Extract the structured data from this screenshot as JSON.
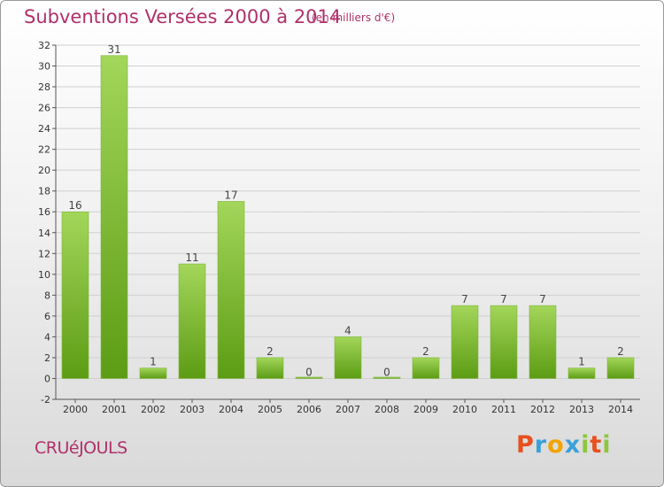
{
  "header": {
    "title": "Subventions Versées 2000 à 2014",
    "subtitle": "(en milliers d'€)"
  },
  "footer": {
    "commune": "CRUéJOULS",
    "logo_text": "Proxiti",
    "logo_colors": [
      "#e8501e",
      "#3aa0d8",
      "#f2a400",
      "#3aa0d8",
      "#8ec63f",
      "#e8501e",
      "#8ec63f"
    ]
  },
  "colors": {
    "bar_light": "#a3d65a",
    "bar_dark": "#5c9c14",
    "grid": "#d0d0d0",
    "accent": "#b0306a"
  },
  "chart_data": {
    "type": "bar",
    "categories": [
      "2000",
      "2001",
      "2002",
      "2003",
      "2004",
      "2005",
      "2006",
      "2007",
      "2008",
      "2009",
      "2010",
      "2011",
      "2012",
      "2013",
      "2014"
    ],
    "values": [
      16,
      31,
      1,
      11,
      17,
      2,
      0,
      4,
      0,
      2,
      7,
      7,
      7,
      1,
      2
    ],
    "ylim": [
      -2,
      32
    ],
    "yticks": [
      -2,
      0,
      2,
      4,
      6,
      8,
      10,
      12,
      14,
      16,
      18,
      20,
      22,
      24,
      26,
      28,
      30,
      32
    ],
    "grid": true,
    "title": "Subventions Versées 2000 à 2014",
    "xlabel": "",
    "ylabel": "(en milliers d'€)"
  }
}
